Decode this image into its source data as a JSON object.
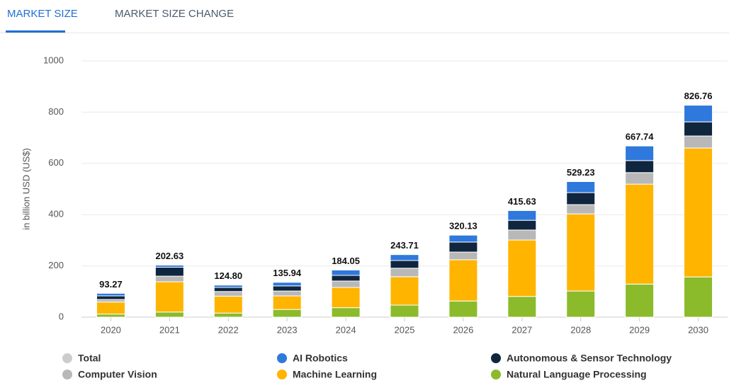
{
  "tabs": [
    "MARKET SIZE",
    "MARKET SIZE CHANGE"
  ],
  "chart_data": {
    "type": "stacked_bar",
    "y_label": "in billion USD (US$)",
    "categories": [
      "2020",
      "2021",
      "2022",
      "2023",
      "2024",
      "2025",
      "2026",
      "2027",
      "2028",
      "2029",
      "2030"
    ],
    "series": [
      {
        "name": "Total",
        "color": "#cccccc",
        "visible": false,
        "values": [
          93.27,
          202.63,
          124.8,
          135.94,
          184.05,
          243.71,
          320.13,
          415.63,
          529.23,
          667.74,
          826.76
        ],
        "value_labels": [
          "93.27",
          "202.63",
          "124.80",
          "135.94",
          "184.05",
          "243.71",
          "320.13",
          "415.63",
          "529.23",
          "667.74",
          "826.76"
        ]
      },
      {
        "name": "AI Robotics",
        "color": "#2f78dc",
        "values": [
          10,
          8,
          9,
          14,
          21,
          23,
          27,
          38,
          43,
          57,
          65
        ]
      },
      {
        "name": "Autonomous & Sensor Technology",
        "color": "#10263f",
        "values": [
          14,
          35,
          16,
          20,
          22,
          30,
          39,
          38,
          47,
          47,
          55
        ]
      },
      {
        "name": "Computer Vision",
        "color": "#b8b8b8",
        "values": [
          10,
          22,
          18,
          19,
          25,
          33,
          30,
          39,
          36,
          45,
          47
        ]
      },
      {
        "name": "Machine Learning",
        "color": "#ffb400",
        "values": [
          47,
          118,
          66,
          53,
          79,
          111,
          161,
          220,
          301,
          390,
          503
        ]
      },
      {
        "name": "Natural Language Processing",
        "color": "#8bbb2b",
        "values": [
          12,
          20,
          16,
          30,
          37,
          47,
          63,
          81,
          102,
          129,
          157
        ]
      }
    ],
    "ylim": [
      0,
      1000
    ],
    "yticks": [
      0,
      200,
      400,
      600,
      800,
      1000
    ],
    "grid": true
  }
}
